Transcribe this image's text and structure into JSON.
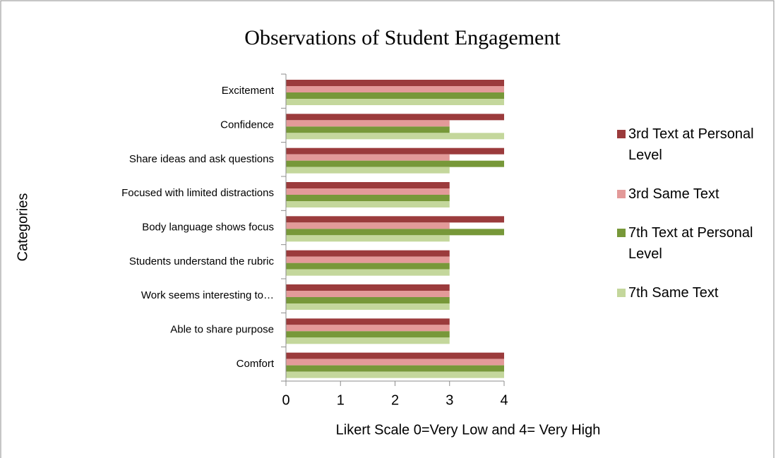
{
  "chart_data": {
    "type": "barh",
    "title": "Observations of Student Engagement",
    "xlabel": "Likert Scale 0=Very Low and 4= Very High",
    "ylabel": "Categories",
    "categories": [
      "Excitement",
      "Confidence",
      "Share ideas and ask questions",
      "Focused with limited distractions",
      "Body language shows focus",
      "Students understand the rubric",
      "Work seems interesting to…",
      "Able to share purpose",
      "Comfort"
    ],
    "series": [
      {
        "name": "3rd Text at Personal Level",
        "color": "#9b3b3c",
        "values": [
          4,
          4,
          4,
          3,
          4,
          3,
          3,
          3,
          4
        ]
      },
      {
        "name": "3rd Same Text",
        "color": "#e39a99",
        "values": [
          4,
          3,
          3,
          3,
          3,
          3,
          3,
          3,
          4
        ]
      },
      {
        "name": "7th Text at Personal Level",
        "color": "#779839",
        "values": [
          4,
          3,
          4,
          3,
          4,
          3,
          3,
          3,
          4
        ]
      },
      {
        "name": "7th Same Text",
        "color": "#c4d79c",
        "values": [
          4,
          4,
          3,
          3,
          3,
          3,
          3,
          3,
          4
        ]
      }
    ],
    "xlim": [
      0,
      4
    ],
    "xticks": [
      0,
      1,
      2,
      3,
      4
    ],
    "grid": false,
    "legend": "right"
  }
}
